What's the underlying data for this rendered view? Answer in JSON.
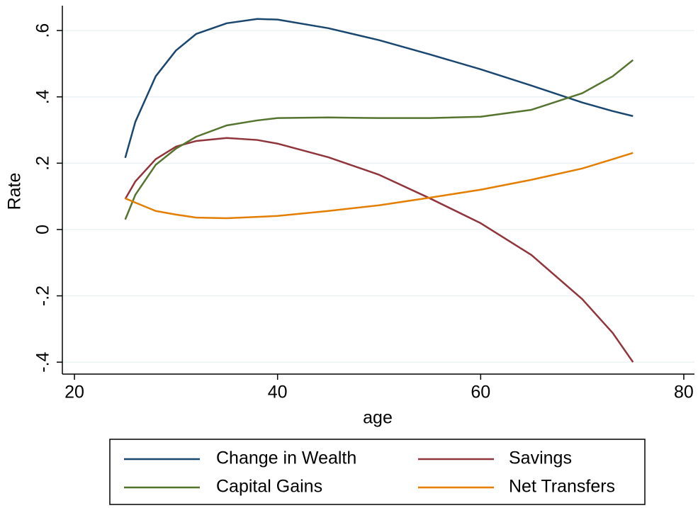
{
  "chart_data": {
    "type": "line",
    "x_label": "age",
    "y_label": "Rate",
    "x": [
      25,
      26,
      28,
      30,
      32,
      35,
      38,
      40,
      45,
      50,
      55,
      60,
      65,
      70,
      73,
      75
    ],
    "series": [
      {
        "name": "Change in Wealth",
        "color": "#1a476f",
        "values": [
          0.216,
          0.325,
          0.462,
          0.54,
          0.59,
          0.622,
          0.635,
          0.633,
          0.607,
          0.571,
          0.528,
          0.483,
          0.434,
          0.383,
          0.357,
          0.342
        ]
      },
      {
        "name": "Savings",
        "color": "#90353b",
        "values": [
          0.092,
          0.145,
          0.212,
          0.25,
          0.267,
          0.276,
          0.27,
          0.259,
          0.218,
          0.165,
          0.094,
          0.019,
          -0.077,
          -0.21,
          -0.312,
          -0.4
        ]
      },
      {
        "name": "Capital Gains",
        "color": "#55752f",
        "values": [
          0.03,
          0.105,
          0.195,
          0.244,
          0.28,
          0.314,
          0.329,
          0.336,
          0.338,
          0.336,
          0.336,
          0.34,
          0.361,
          0.411,
          0.462,
          0.511
        ]
      },
      {
        "name": "Net Transfers",
        "color": "#e37e00",
        "values": [
          0.094,
          0.081,
          0.056,
          0.045,
          0.036,
          0.034,
          0.038,
          0.041,
          0.056,
          0.073,
          0.096,
          0.12,
          0.15,
          0.184,
          0.212,
          0.231
        ]
      }
    ],
    "xlim": [
      18.81,
      81.05
    ],
    "xticks": [
      20,
      40,
      60,
      80
    ],
    "ylim": [
      -0.436,
      0.675
    ],
    "yticks": [
      {
        "value": -0.4,
        "label": "-.4"
      },
      {
        "value": -0.2,
        "label": "-.2"
      },
      0,
      {
        "value": 0.2,
        "label": ".2"
      },
      {
        "value": 0.4,
        "label": ".4"
      },
      {
        "value": 0.6,
        "label": ".6"
      }
    ],
    "grid": true
  }
}
